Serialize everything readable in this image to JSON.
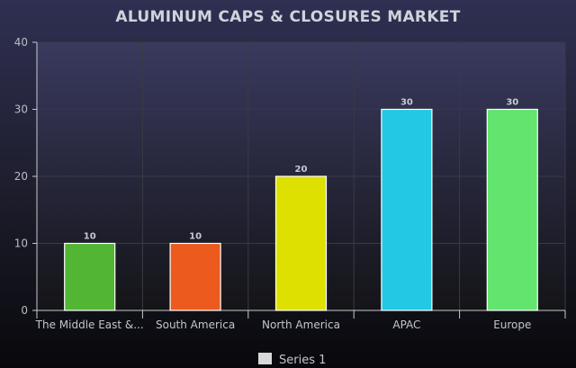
{
  "chart_data": {
    "type": "bar",
    "title": "ALUMINUM CAPS & CLOSURES MARKET",
    "categories": [
      "The Middle East &...",
      "South America",
      "North America",
      "APAC",
      "Europe"
    ],
    "series": [
      {
        "name": "Series 1",
        "values": [
          10,
          10,
          20,
          30,
          30
        ]
      }
    ],
    "bar_colors": [
      "#52b533",
      "#ec5a1e",
      "#dde000",
      "#22c8e4",
      "#62e46e"
    ],
    "data_labels": [
      "10",
      "10",
      "20",
      "30",
      "30"
    ],
    "ylim": [
      0,
      40
    ],
    "yticks": [
      "0",
      "10",
      "20",
      "30",
      "40"
    ],
    "grid": true,
    "legend": {
      "position": "bottom",
      "items": [
        "Series 1"
      ],
      "swatch_color": "#d8d8d8"
    },
    "colors": {
      "background_top": "#2f3052",
      "background_bottom": "#0a0a0f",
      "grid": "#3a3a44",
      "axis": "#c8c8d0"
    }
  }
}
